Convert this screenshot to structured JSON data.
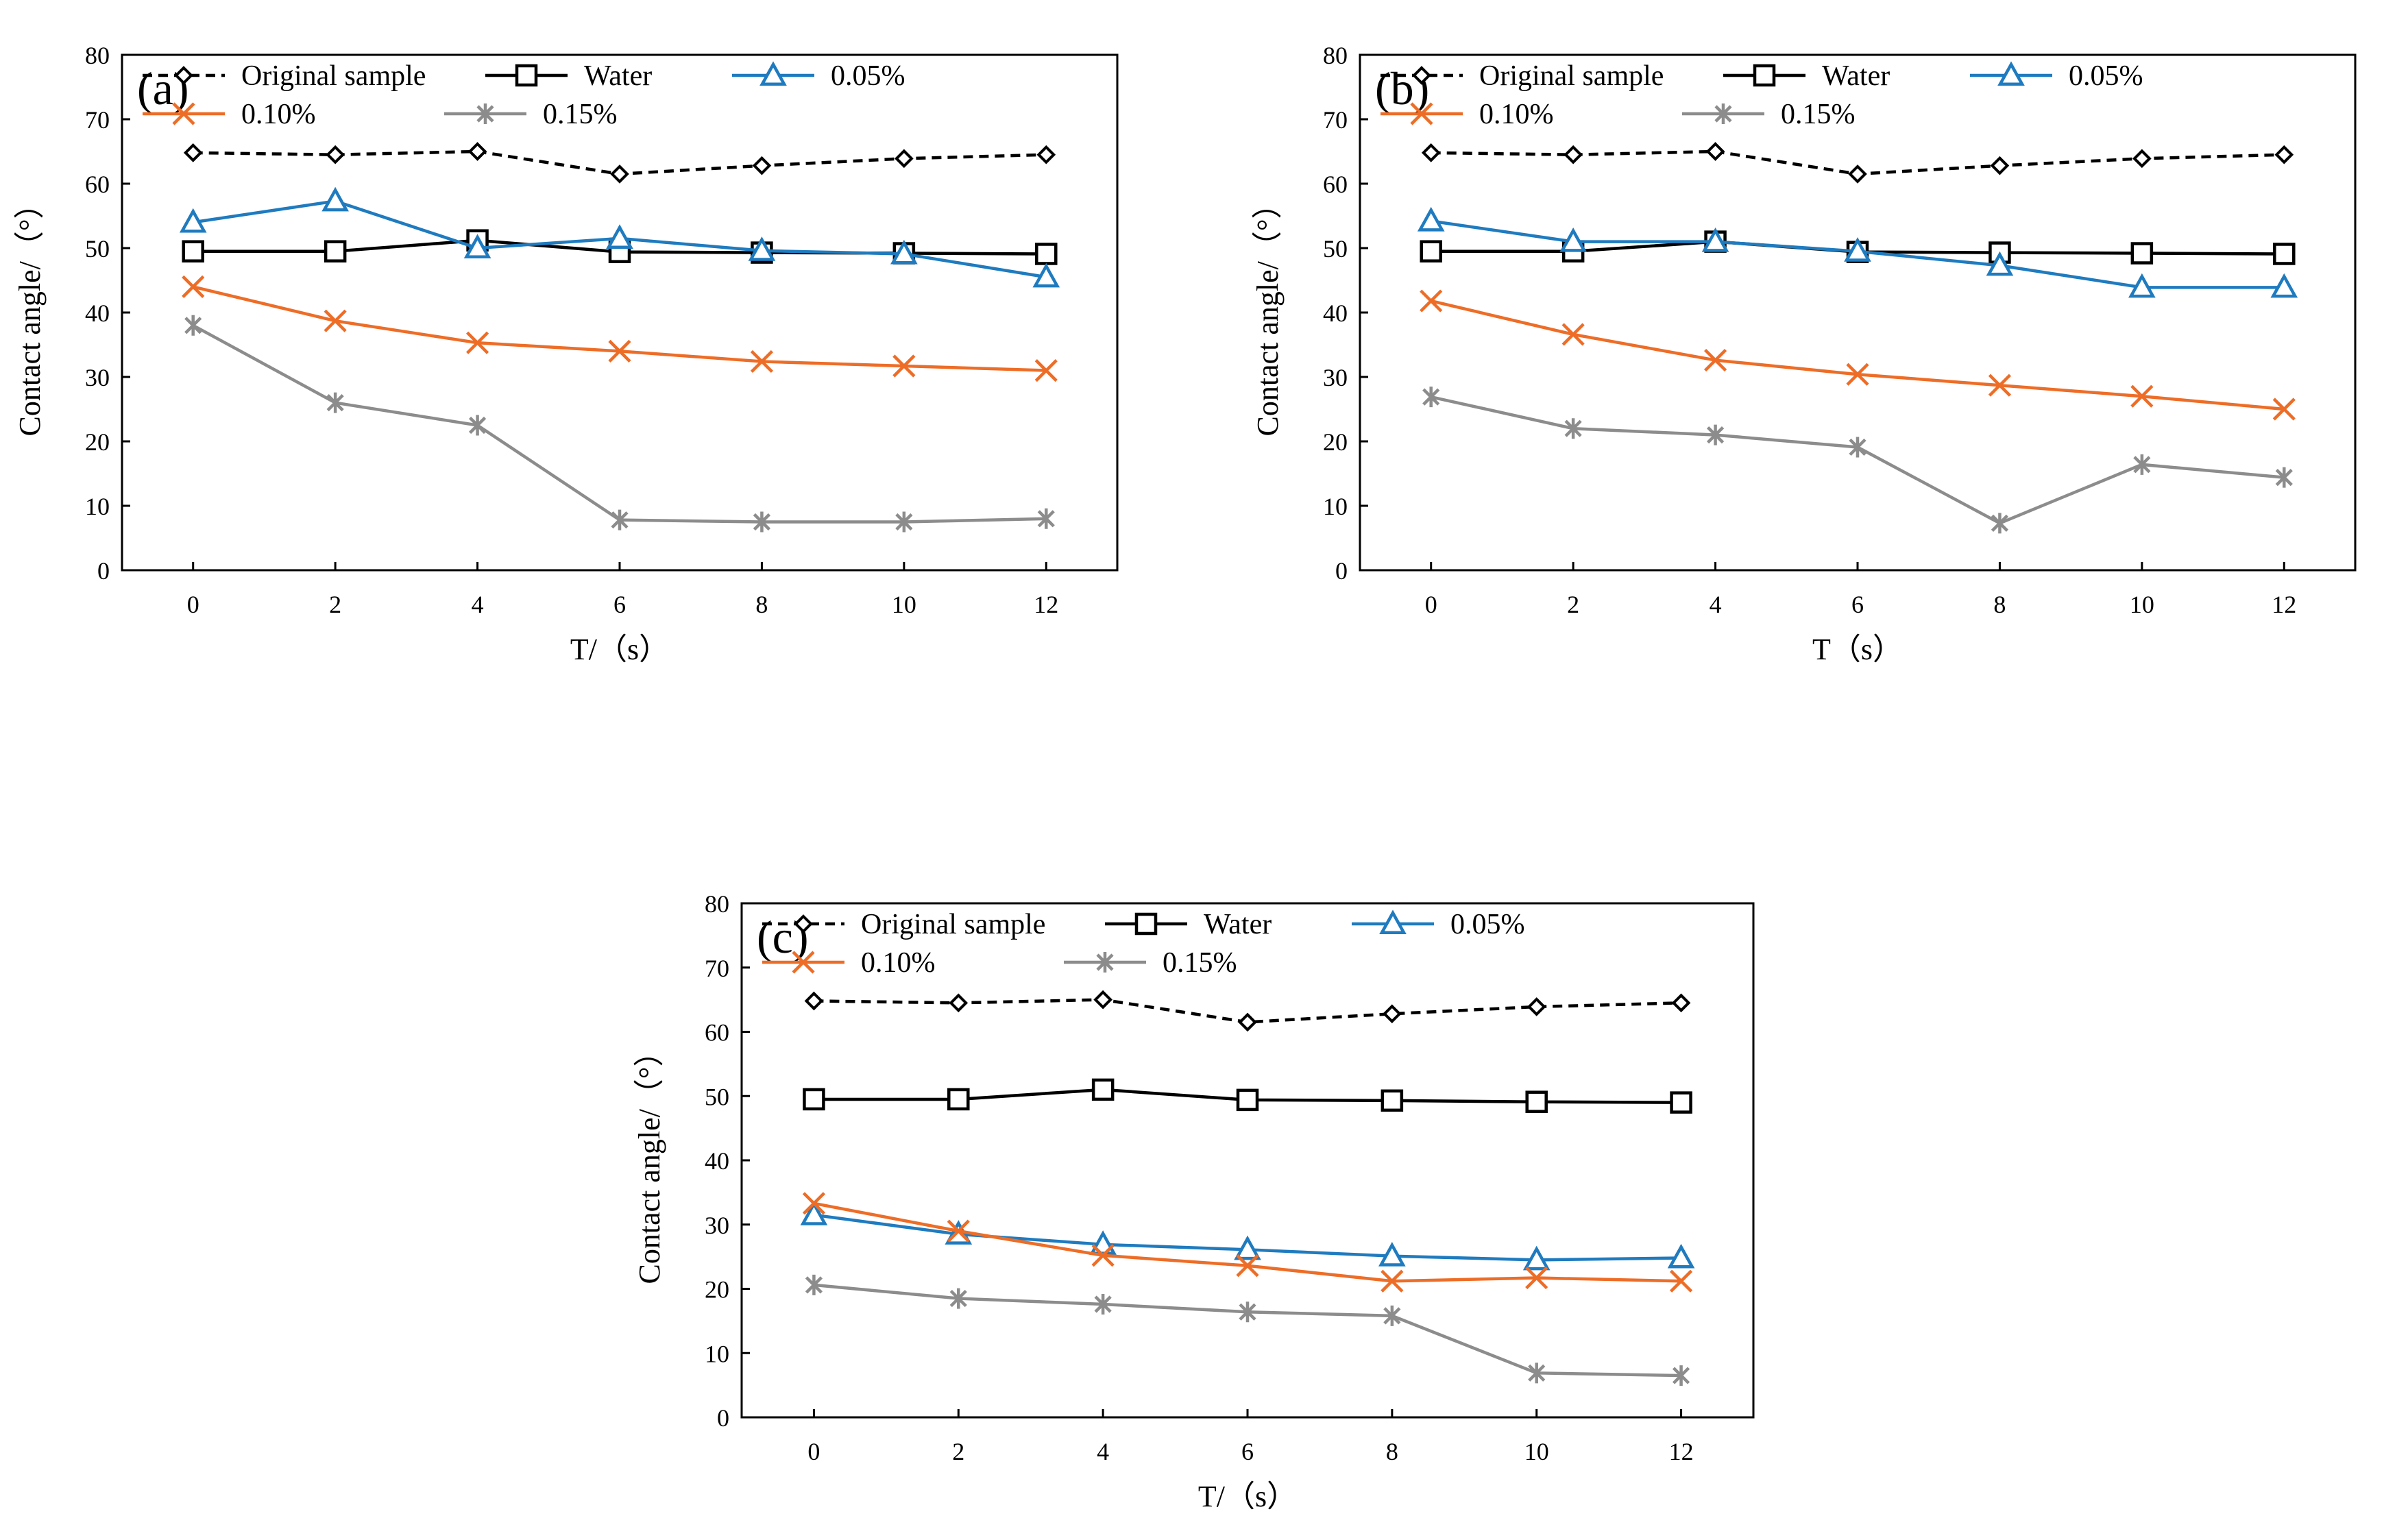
{
  "figure": {
    "colors": {
      "original": "#000000",
      "water": "#000000",
      "c005": "#1f7bbf",
      "c010": "#ed6d27",
      "c015": "#8c8c8c"
    }
  },
  "chart_data": [
    {
      "type": "line",
      "panel_label": "(a)",
      "xlabel": "T/（s）",
      "ylabel": "Contact angle/（°）",
      "ylim": [
        0,
        80
      ],
      "xlim": [
        -1,
        13
      ],
      "x": [
        0,
        2,
        4,
        6,
        8,
        10,
        12
      ],
      "x_ticks": [
        "0",
        "2",
        "4",
        "6",
        "8",
        "10",
        "12"
      ],
      "y_ticks": [
        "0",
        "10",
        "20",
        "30",
        "40",
        "50",
        "60",
        "70",
        "80"
      ],
      "legend_position": "top",
      "grid": false,
      "series": [
        {
          "name": "Original sample",
          "style": "dashed",
          "marker": "diamond",
          "color": "#000000",
          "values": [
            64.8,
            64.5,
            65.0,
            61.5,
            62.8,
            63.9,
            64.5
          ]
        },
        {
          "name": "Water",
          "style": "solid",
          "marker": "square",
          "color": "#000000",
          "values": [
            49.5,
            49.5,
            51.2,
            49.4,
            49.3,
            49.2,
            49.1
          ]
        },
        {
          "name": "0.05%",
          "style": "solid",
          "marker": "triangle",
          "color": "#1f7bbf",
          "values": [
            54.0,
            57.3,
            50.0,
            51.5,
            49.6,
            49.1,
            45.5
          ]
        },
        {
          "name": "0.10%",
          "style": "solid",
          "marker": "x",
          "color": "#ed6d27",
          "values": [
            44.0,
            38.7,
            35.3,
            34.0,
            32.4,
            31.7,
            31.0
          ]
        },
        {
          "name": "0.15%",
          "style": "solid",
          "marker": "asterisk",
          "color": "#8c8c8c",
          "values": [
            38.0,
            26.0,
            22.5,
            7.8,
            7.5,
            7.5,
            8.0
          ]
        }
      ]
    },
    {
      "type": "line",
      "panel_label": "(b)",
      "xlabel": "T（s）",
      "ylabel": "Contact angle/（°）",
      "ylim": [
        0,
        80
      ],
      "xlim": [
        -1,
        13
      ],
      "x": [
        0,
        2,
        4,
        6,
        8,
        10,
        12
      ],
      "x_ticks": [
        "0",
        "2",
        "4",
        "6",
        "8",
        "10",
        "12"
      ],
      "y_ticks": [
        "0",
        "10",
        "20",
        "30",
        "40",
        "50",
        "60",
        "70",
        "80"
      ],
      "legend_position": "top",
      "grid": false,
      "series": [
        {
          "name": "Original sample",
          "style": "dashed",
          "marker": "diamond",
          "color": "#000000",
          "values": [
            64.8,
            64.5,
            65.0,
            61.5,
            62.8,
            63.9,
            64.5
          ]
        },
        {
          "name": "Water",
          "style": "solid",
          "marker": "square",
          "color": "#000000",
          "values": [
            49.5,
            49.5,
            51.0,
            49.4,
            49.3,
            49.2,
            49.1
          ]
        },
        {
          "name": "0.05%",
          "style": "solid",
          "marker": "triangle",
          "color": "#1f7bbf",
          "values": [
            54.2,
            51.0,
            51.0,
            49.5,
            47.3,
            43.9,
            43.9
          ]
        },
        {
          "name": "0.10%",
          "style": "solid",
          "marker": "x",
          "color": "#ed6d27",
          "values": [
            41.8,
            36.6,
            32.6,
            30.4,
            28.7,
            27.0,
            25.0
          ]
        },
        {
          "name": "0.15%",
          "style": "solid",
          "marker": "asterisk",
          "color": "#8c8c8c",
          "values": [
            26.9,
            22.0,
            21.0,
            19.1,
            7.3,
            16.4,
            14.4
          ]
        }
      ]
    },
    {
      "type": "line",
      "panel_label": "(c)",
      "xlabel": "T/（s）",
      "ylabel": "Contact angle/（°）",
      "ylim": [
        0,
        80
      ],
      "xlim": [
        -1,
        13
      ],
      "x": [
        0,
        2,
        4,
        6,
        8,
        10,
        12
      ],
      "x_ticks": [
        "0",
        "2",
        "4",
        "6",
        "8",
        "10",
        "12"
      ],
      "y_ticks": [
        "0",
        "10",
        "20",
        "30",
        "40",
        "50",
        "60",
        "70",
        "80"
      ],
      "legend_position": "top",
      "grid": false,
      "series": [
        {
          "name": "Original sample",
          "style": "dashed",
          "marker": "diamond",
          "color": "#000000",
          "values": [
            64.8,
            64.5,
            65.0,
            61.5,
            62.8,
            63.9,
            64.5
          ]
        },
        {
          "name": "Water",
          "style": "solid",
          "marker": "square",
          "color": "#000000",
          "values": [
            49.5,
            49.5,
            51.0,
            49.4,
            49.3,
            49.1,
            49.0
          ]
        },
        {
          "name": "0.05%",
          "style": "solid",
          "marker": "triangle",
          "color": "#1f7bbf",
          "values": [
            31.5,
            28.5,
            26.9,
            26.1,
            25.1,
            24.5,
            24.8
          ]
        },
        {
          "name": "0.10%",
          "style": "solid",
          "marker": "x",
          "color": "#ed6d27",
          "values": [
            33.3,
            29.0,
            25.2,
            23.6,
            21.2,
            21.7,
            21.2
          ]
        },
        {
          "name": "0.15%",
          "style": "solid",
          "marker": "asterisk",
          "color": "#8c8c8c",
          "values": [
            20.6,
            18.5,
            17.6,
            16.4,
            15.8,
            6.9,
            6.5
          ]
        }
      ]
    }
  ]
}
